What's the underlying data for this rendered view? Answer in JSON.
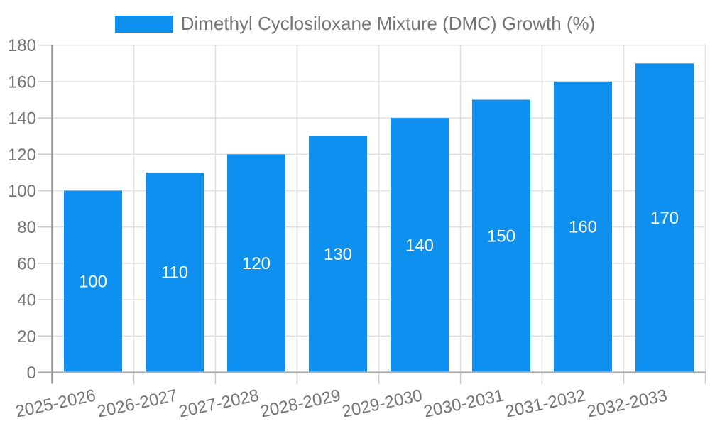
{
  "legend": {
    "label": "Dimethyl Cyclosiloxane Mixture (DMC) Growth (%)"
  },
  "chart_data": {
    "type": "bar",
    "title": "Dimethyl Cyclosiloxane Mixture (DMC) Growth (%)",
    "series_name": "Dimethyl Cyclosiloxane Mixture (DMC) Growth (%)",
    "categories": [
      "2025-2026",
      "2026-2027",
      "2027-2028",
      "2028-2029",
      "2029-2030",
      "2030-2031",
      "2031-2032",
      "2032-2033"
    ],
    "values": [
      100,
      110,
      120,
      130,
      140,
      150,
      160,
      170
    ],
    "value_labels": [
      "100",
      "110",
      "120",
      "130",
      "140",
      "150",
      "160",
      "170"
    ],
    "value_label_position": "inside-middle",
    "xlabel": "",
    "ylabel": "",
    "ylim": [
      0,
      180
    ],
    "ytick_step": 20,
    "ytick_labels": [
      "0",
      "20",
      "40",
      "60",
      "80",
      "100",
      "120",
      "140",
      "160",
      "180"
    ],
    "x_label_rotation_deg": -12,
    "grid": true,
    "legend_position": "top-center",
    "colors": {
      "bar": "#0d90f0",
      "value_label": "#ffffff",
      "axis_text": "#757575",
      "grid_line": "#e0e0e0",
      "tick_mark": "#c9c9c9",
      "x_axis_line": "#b0b0b0",
      "y_axis_line": "#999999",
      "background": "#ffffff"
    }
  }
}
